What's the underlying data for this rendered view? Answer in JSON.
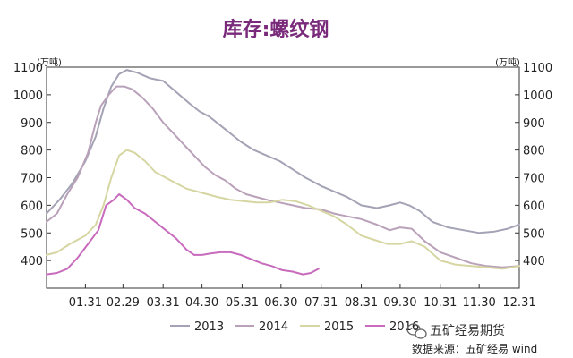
{
  "chart_data": {
    "type": "line",
    "title": "库存:螺纹钢",
    "unit_left": "(万吨)",
    "unit_right": "(万吨)",
    "ylim": [
      300,
      1100
    ],
    "y_ticks": [
      400,
      500,
      600,
      700,
      800,
      900,
      1000,
      1100
    ],
    "x_ticks": [
      "01.31",
      "02.29",
      "03.31",
      "04.30",
      "05.31",
      "06.30",
      "07.31",
      "08.31",
      "09.30",
      "10.31",
      "11.30",
      "12.31"
    ],
    "x_tick_days": [
      30,
      59,
      90,
      120,
      151,
      181,
      212,
      243,
      273,
      304,
      334,
      365
    ],
    "x_range": [
      0,
      365
    ],
    "legend_position": "bottom",
    "series": [
      {
        "name": "2013",
        "color": "#a3a3b5",
        "points": [
          [
            0,
            570
          ],
          [
            10,
            620
          ],
          [
            20,
            680
          ],
          [
            30,
            760
          ],
          [
            38,
            850
          ],
          [
            44,
            950
          ],
          [
            50,
            1030
          ],
          [
            56,
            1075
          ],
          [
            62,
            1090
          ],
          [
            70,
            1080
          ],
          [
            80,
            1060
          ],
          [
            90,
            1050
          ],
          [
            100,
            1010
          ],
          [
            110,
            970
          ],
          [
            118,
            940
          ],
          [
            126,
            920
          ],
          [
            134,
            890
          ],
          [
            142,
            860
          ],
          [
            150,
            830
          ],
          [
            160,
            800
          ],
          [
            170,
            780
          ],
          [
            180,
            760
          ],
          [
            190,
            730
          ],
          [
            200,
            700
          ],
          [
            212,
            670
          ],
          [
            222,
            650
          ],
          [
            232,
            630
          ],
          [
            243,
            600
          ],
          [
            255,
            590
          ],
          [
            265,
            600
          ],
          [
            273,
            610
          ],
          [
            280,
            600
          ],
          [
            288,
            580
          ],
          [
            298,
            540
          ],
          [
            310,
            520
          ],
          [
            322,
            510
          ],
          [
            334,
            500
          ],
          [
            346,
            505
          ],
          [
            356,
            515
          ],
          [
            365,
            530
          ]
        ]
      },
      {
        "name": "2014",
        "color": "#b9a1b9",
        "points": [
          [
            0,
            540
          ],
          [
            8,
            570
          ],
          [
            16,
            640
          ],
          [
            24,
            700
          ],
          [
            32,
            790
          ],
          [
            38,
            900
          ],
          [
            42,
            960
          ],
          [
            48,
            1000
          ],
          [
            54,
            1030
          ],
          [
            60,
            1030
          ],
          [
            66,
            1020
          ],
          [
            74,
            990
          ],
          [
            82,
            950
          ],
          [
            90,
            900
          ],
          [
            98,
            860
          ],
          [
            106,
            820
          ],
          [
            114,
            780
          ],
          [
            122,
            740
          ],
          [
            130,
            710
          ],
          [
            138,
            690
          ],
          [
            146,
            660
          ],
          [
            154,
            640
          ],
          [
            162,
            630
          ],
          [
            170,
            620
          ],
          [
            180,
            610
          ],
          [
            190,
            600
          ],
          [
            200,
            590
          ],
          [
            212,
            585
          ],
          [
            222,
            570
          ],
          [
            232,
            560
          ],
          [
            243,
            550
          ],
          [
            255,
            530
          ],
          [
            265,
            510
          ],
          [
            273,
            520
          ],
          [
            282,
            515
          ],
          [
            292,
            470
          ],
          [
            304,
            430
          ],
          [
            316,
            410
          ],
          [
            328,
            390
          ],
          [
            340,
            380
          ],
          [
            352,
            375
          ],
          [
            365,
            380
          ]
        ]
      },
      {
        "name": "2015",
        "color": "#d6d6a2",
        "points": [
          [
            0,
            420
          ],
          [
            8,
            430
          ],
          [
            18,
            460
          ],
          [
            30,
            490
          ],
          [
            38,
            530
          ],
          [
            44,
            600
          ],
          [
            50,
            700
          ],
          [
            56,
            780
          ],
          [
            62,
            800
          ],
          [
            68,
            790
          ],
          [
            76,
            760
          ],
          [
            84,
            720
          ],
          [
            92,
            700
          ],
          [
            100,
            680
          ],
          [
            108,
            660
          ],
          [
            116,
            650
          ],
          [
            124,
            640
          ],
          [
            132,
            630
          ],
          [
            142,
            620
          ],
          [
            152,
            615
          ],
          [
            162,
            610
          ],
          [
            172,
            610
          ],
          [
            182,
            620
          ],
          [
            192,
            615
          ],
          [
            202,
            600
          ],
          [
            212,
            580
          ],
          [
            222,
            560
          ],
          [
            232,
            530
          ],
          [
            243,
            490
          ],
          [
            253,
            475
          ],
          [
            263,
            460
          ],
          [
            273,
            460
          ],
          [
            282,
            470
          ],
          [
            292,
            450
          ],
          [
            304,
            400
          ],
          [
            316,
            385
          ],
          [
            328,
            380
          ],
          [
            340,
            375
          ],
          [
            352,
            370
          ],
          [
            365,
            380
          ]
        ]
      },
      {
        "name": "2016",
        "color": "#c86bbd",
        "points": [
          [
            0,
            350
          ],
          [
            8,
            355
          ],
          [
            16,
            370
          ],
          [
            24,
            410
          ],
          [
            32,
            460
          ],
          [
            40,
            510
          ],
          [
            46,
            600
          ],
          [
            52,
            620
          ],
          [
            56,
            640
          ],
          [
            62,
            620
          ],
          [
            68,
            590
          ],
          [
            76,
            570
          ],
          [
            84,
            540
          ],
          [
            92,
            510
          ],
          [
            100,
            480
          ],
          [
            108,
            440
          ],
          [
            114,
            420
          ],
          [
            120,
            420
          ],
          [
            126,
            425
          ],
          [
            134,
            430
          ],
          [
            142,
            430
          ],
          [
            150,
            420
          ],
          [
            158,
            405
          ],
          [
            166,
            390
          ],
          [
            174,
            380
          ],
          [
            182,
            365
          ],
          [
            190,
            360
          ],
          [
            198,
            350
          ],
          [
            204,
            355
          ],
          [
            210,
            370
          ]
        ]
      }
    ]
  },
  "watermark": {
    "icon": "wechat-icon",
    "text": "五矿经易期货"
  },
  "source_text": "数据来源：五矿经易 wind"
}
